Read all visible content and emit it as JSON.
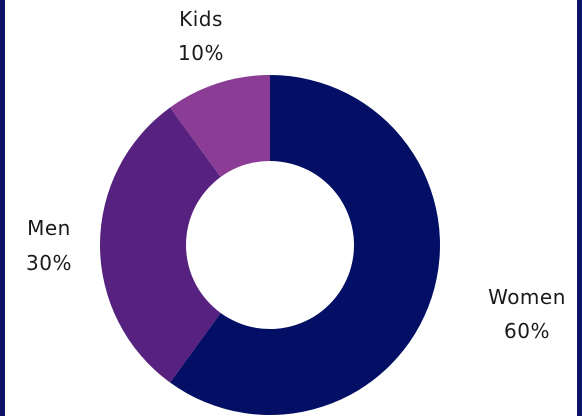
{
  "chart_data": {
    "type": "pie",
    "variant": "donut",
    "title": "",
    "slices": [
      {
        "label": "Women",
        "value": 60,
        "display": "60%",
        "color": "#020f64"
      },
      {
        "label": "Men",
        "value": 30,
        "display": "30%",
        "color": "#56217f"
      },
      {
        "label": "Kids",
        "value": 10,
        "display": "10%",
        "color": "#8b3d96"
      }
    ],
    "legend": "none",
    "start": "top",
    "direction": "clockwise"
  },
  "colors": {
    "frame_border": "#0e1266",
    "background": "#ffffff"
  }
}
